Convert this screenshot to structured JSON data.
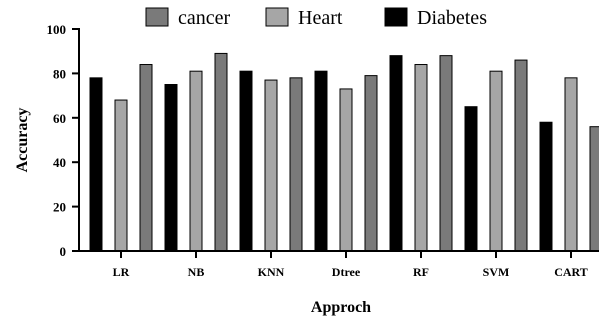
{
  "chart_data": {
    "type": "bar",
    "title": "",
    "xlabel": "Approch",
    "ylabel": "Accuracy",
    "ylim": [
      0,
      100
    ],
    "yticks": [
      0,
      20,
      40,
      60,
      80,
      100
    ],
    "grid": false,
    "legend_position": "top",
    "categories": [
      "LR",
      "NB",
      "KNN",
      "Dtree",
      "RF",
      "SVM",
      "CART"
    ],
    "series": [
      {
        "name": "Diabetes",
        "color": "#000000",
        "values": [
          78,
          75,
          81,
          81,
          88,
          65,
          58
        ]
      },
      {
        "name": "Heart",
        "color": "#a6a6a6",
        "values": [
          68,
          81,
          77,
          73,
          84,
          81,
          78
        ]
      },
      {
        "name": "cancer",
        "color": "#7a7a7a",
        "values": [
          84,
          89,
          78,
          79,
          88,
          86,
          56
        ]
      }
    ],
    "legend_order": [
      "cancer",
      "Heart",
      "Diabetes"
    ]
  }
}
